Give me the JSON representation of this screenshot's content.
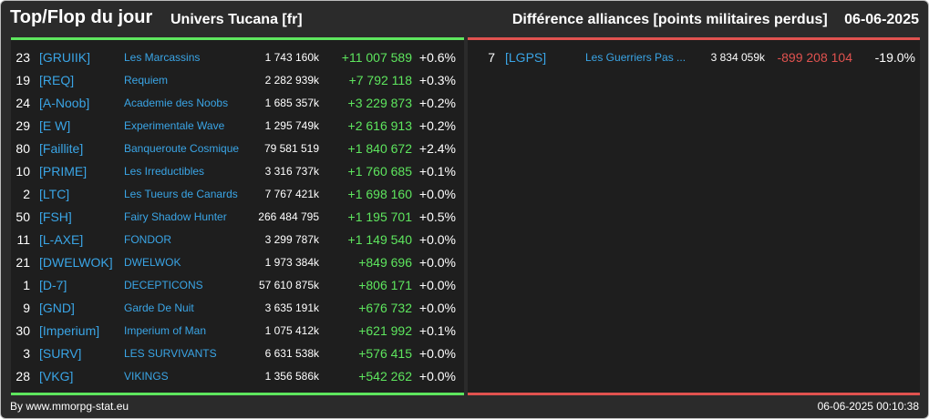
{
  "header": {
    "title": "Top/Flop du jour",
    "universe": "Univers Tucana [fr]",
    "ranking_type": "Différence alliances [points militaires perdus]",
    "date": "06-06-2025"
  },
  "colors": {
    "positive": "#5ee65e",
    "negative": "#e0524f",
    "tag": "#3aa5e6",
    "background": "#2b2b2b",
    "panel": "#1e1e1e"
  },
  "top": [
    {
      "rank": "23",
      "tag": "[GRUIIK]",
      "name": "Les Marcassins",
      "points": "1 743 160k",
      "diff": "+11 007 589",
      "pct": "+0.6%"
    },
    {
      "rank": "19",
      "tag": "[REQ]",
      "name": "Requiem",
      "points": "2 282 939k",
      "diff": "+7 792 118",
      "pct": "+0.3%"
    },
    {
      "rank": "24",
      "tag": "[A-Noob]",
      "name": "Academie des Noobs",
      "points": "1 685 357k",
      "diff": "+3 229 873",
      "pct": "+0.2%"
    },
    {
      "rank": "29",
      "tag": "[E W]",
      "name": "Experimentale Wave",
      "points": "1 295 749k",
      "diff": "+2 616 913",
      "pct": "+0.2%"
    },
    {
      "rank": "80",
      "tag": "[Faillite]",
      "name": "Banqueroute Cosmique",
      "points": "79 581 519",
      "diff": "+1 840 672",
      "pct": "+2.4%"
    },
    {
      "rank": "10",
      "tag": "[PRIME]",
      "name": "Les Irreductibles",
      "points": "3 316 737k",
      "diff": "+1 760 685",
      "pct": "+0.1%"
    },
    {
      "rank": "2",
      "tag": "[LTC]",
      "name": "Les Tueurs de Canards",
      "points": "7 767 421k",
      "diff": "+1 698 160",
      "pct": "+0.0%"
    },
    {
      "rank": "50",
      "tag": "[FSH]",
      "name": "Fairy Shadow Hunter",
      "points": "266 484 795",
      "diff": "+1 195 701",
      "pct": "+0.5%"
    },
    {
      "rank": "11",
      "tag": "[L-AXE]",
      "name": "FONDOR",
      "points": "3 299 787k",
      "diff": "+1 149 540",
      "pct": "+0.0%"
    },
    {
      "rank": "21",
      "tag": "[DWELWOK]",
      "name": "DWELWOK",
      "points": "1 973 384k",
      "diff": "+849 696",
      "pct": "+0.0%"
    },
    {
      "rank": "1",
      "tag": "[D-7]",
      "name": "DECEPTICONS",
      "points": "57 610 875k",
      "diff": "+806 171",
      "pct": "+0.0%"
    },
    {
      "rank": "9",
      "tag": "[GND]",
      "name": "Garde De Nuit",
      "points": "3 635 191k",
      "diff": "+676 732",
      "pct": "+0.0%"
    },
    {
      "rank": "30",
      "tag": "[Imperium]",
      "name": "Imperium of Man",
      "points": "1 075 412k",
      "diff": "+621 992",
      "pct": "+0.1%"
    },
    {
      "rank": "3",
      "tag": "[SURV]",
      "name": "LES SURVIVANTS",
      "points": "6 631 538k",
      "diff": "+576 415",
      "pct": "+0.0%"
    },
    {
      "rank": "28",
      "tag": "[VKG]",
      "name": "VIKINGS",
      "points": "1 356 586k",
      "diff": "+542 262",
      "pct": "+0.0%"
    }
  ],
  "flop": [
    {
      "rank": "7",
      "tag": "[LGPS]",
      "name": "Les Guerriers Pas ...",
      "points": "3 834 059k",
      "diff": "-899 208 104",
      "pct": "-19.0%"
    }
  ],
  "footer": {
    "source": "By www.mmorpg-stat.eu",
    "timestamp": "06-06-2025 00:10:38"
  }
}
